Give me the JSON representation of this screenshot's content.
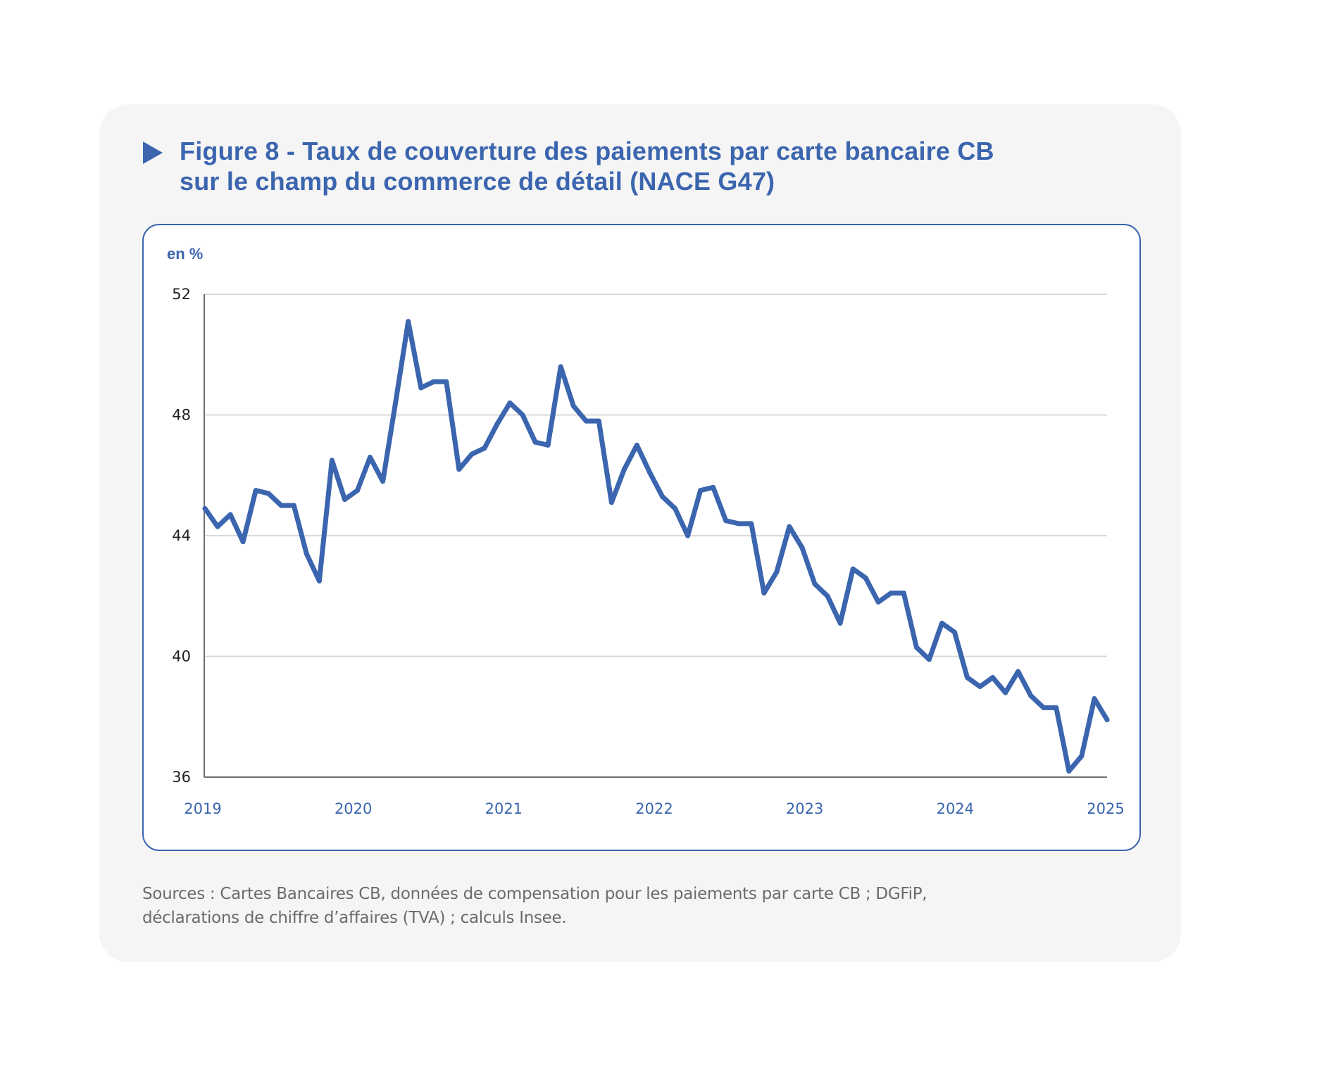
{
  "figure": {
    "title_lines": [
      "Figure 8 - Taux de couverture des paiements par carte bancaire CB",
      "sur le champ du commerce de détail (NACE G47)"
    ],
    "title_icon": "triangle-right-icon",
    "accent_color": "#3b65ae",
    "sources_lines": [
      "Sources : Cartes Bancaires CB, données de compensation pour les paiements par carte CB ; DGFiP,",
      "déclarations de chiffre d’affaires (TVA) ; calculs Insee."
    ]
  },
  "chart_data": {
    "type": "line",
    "title": "Figure 8 - Taux de couverture des paiements par carte bancaire CB sur le champ du commerce de détail (NACE G47)",
    "unit_label": "en %",
    "xlabel": "",
    "ylabel": "en %",
    "ylim": [
      36,
      52
    ],
    "yticks": [
      52,
      48,
      44,
      40,
      36
    ],
    "xlim": [
      "2019-01",
      "2024-12"
    ],
    "xtick_labels": [
      "2019",
      "2020",
      "2021",
      "2022",
      "2023",
      "2024",
      "2025"
    ],
    "grid": "horizontal",
    "legend": "none",
    "series": [
      {
        "name": "Taux de couverture",
        "color": "#3b65ae",
        "frequency": "monthly",
        "start": "2019-01",
        "values": [
          44.9,
          44.3,
          44.7,
          43.8,
          45.5,
          45.4,
          45.0,
          45.0,
          43.4,
          42.5,
          46.5,
          45.2,
          45.5,
          46.6,
          45.8,
          48.4,
          51.1,
          48.9,
          49.1,
          49.1,
          46.2,
          46.7,
          46.9,
          47.7,
          48.4,
          48.0,
          47.1,
          47.0,
          49.6,
          48.3,
          47.8,
          47.8,
          45.1,
          46.2,
          47.0,
          46.1,
          45.3,
          44.9,
          44.0,
          45.5,
          45.6,
          44.5,
          44.4,
          44.4,
          42.1,
          42.8,
          44.3,
          43.6,
          42.4,
          42.0,
          41.1,
          42.9,
          42.6,
          41.8,
          42.1,
          42.1,
          40.3,
          39.9,
          41.1,
          40.8,
          39.3,
          39.0,
          39.3,
          38.8,
          39.5,
          38.7,
          38.3,
          38.3,
          36.2,
          36.7,
          38.6,
          37.9
        ]
      }
    ]
  }
}
